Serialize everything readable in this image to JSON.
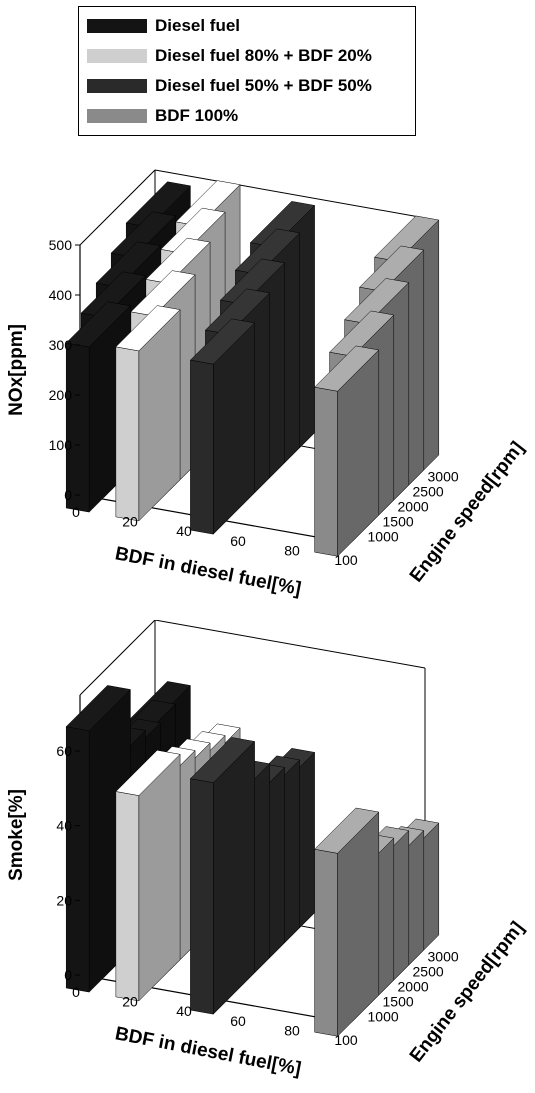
{
  "legend": {
    "items": [
      {
        "label": "Diesel fuel",
        "color": "#141414"
      },
      {
        "label": "Diesel fuel 80% + BDF 20%",
        "color": "#cfcfcf"
      },
      {
        "label": "Diesel fuel 50% + BDF 50%",
        "color": "#2a2a2a"
      },
      {
        "label": "BDF 100%",
        "color": "#8a8a8a"
      }
    ]
  },
  "chart_data": [
    {
      "type": "bar3d",
      "title": "",
      "xlabel": "BDF in diesel fuel[%]",
      "ylabel": "Engine speed[rpm]",
      "zlabel": "NOx[ppm]",
      "x_ticks": [
        "0",
        "20",
        "40",
        "60",
        "80",
        "100"
      ],
      "y_ticks": [
        "1000",
        "1500",
        "2000",
        "2500",
        "3000"
      ],
      "z_ticks": [
        "0",
        "100",
        "200",
        "300",
        "400",
        "500"
      ],
      "zlim": [
        0,
        500
      ],
      "categories_bdf": [
        0,
        20,
        50,
        100
      ],
      "engine_speed": [
        1000,
        1500,
        2000,
        2500,
        3000
      ],
      "series": [
        {
          "name": "Diesel fuel",
          "bdf": 0,
          "values": [
            330,
            360,
            390,
            420,
            450
          ]
        },
        {
          "name": "Diesel fuel 80% + BDF 20%",
          "bdf": 20,
          "values": [
            340,
            380,
            415,
            445,
            470
          ]
        },
        {
          "name": "Diesel fuel 50% + BDF 50%",
          "bdf": 50,
          "values": [
            340,
            370,
            400,
            430,
            455
          ]
        },
        {
          "name": "BDF 100%",
          "bdf": 100,
          "values": [
            330,
            370,
            405,
            440,
            470
          ]
        }
      ]
    },
    {
      "type": "bar3d",
      "title": "",
      "xlabel": "BDF in diesel fuel[%]",
      "ylabel": "Engine speed[rpm]",
      "zlabel": "Smoke[%]",
      "x_ticks": [
        "0",
        "20",
        "40",
        "60",
        "80",
        "100"
      ],
      "y_ticks": [
        "1000",
        "1500",
        "2000",
        "2500",
        "3000"
      ],
      "z_ticks": [
        "0",
        "20",
        "40",
        "60"
      ],
      "zlim": [
        0,
        75
      ],
      "categories_bdf": [
        0,
        20,
        50,
        100
      ],
      "engine_speed": [
        1000,
        1500,
        2000,
        2500,
        3000
      ],
      "series": [
        {
          "name": "Diesel fuel",
          "bdf": 0,
          "values": [
            70,
            55,
            53,
            54,
            55
          ]
        },
        {
          "name": "Diesel fuel 80% + BDF 20%",
          "bdf": 20,
          "values": [
            55,
            52,
            50,
            48,
            46
          ]
        },
        {
          "name": "Diesel fuel 50% + BDF 50%",
          "bdf": 50,
          "values": [
            62,
            52,
            47,
            45,
            43
          ]
        },
        {
          "name": "BDF 100%",
          "bdf": 100,
          "values": [
            49,
            38,
            36,
            32,
            30
          ]
        }
      ]
    }
  ]
}
